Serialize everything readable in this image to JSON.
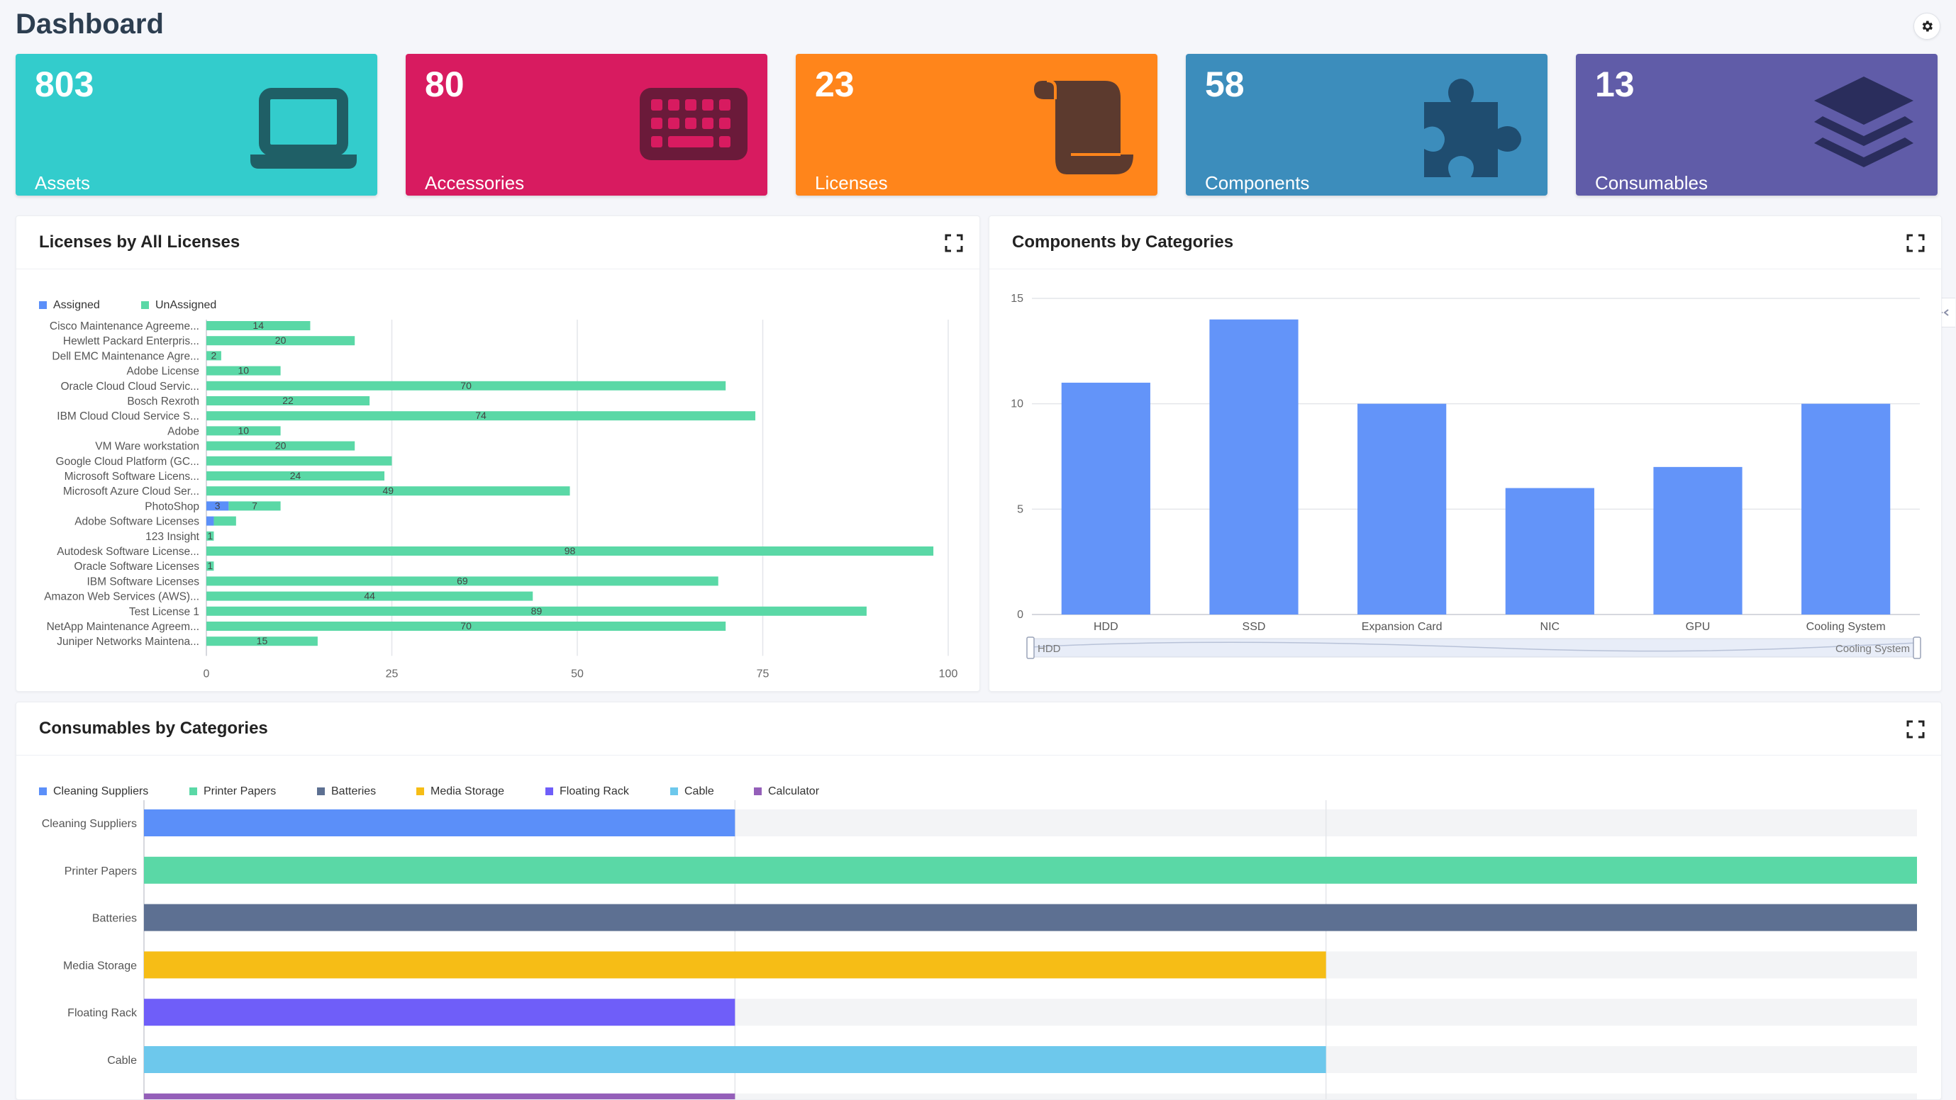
{
  "page": {
    "title": "Dashboard",
    "settings_icon": "gear-icon",
    "edge_tab_icon": "collapse-arrows-icon"
  },
  "stats": [
    {
      "value": "803",
      "label": "Assets",
      "color": "#33cccc",
      "icon": "laptop-icon"
    },
    {
      "value": "80",
      "label": "Accessories",
      "color": "#d81b60",
      "icon": "keyboard-icon"
    },
    {
      "value": "23",
      "label": "Licenses",
      "color": "#ff851b",
      "icon": "scroll-icon"
    },
    {
      "value": "58",
      "label": "Components",
      "color": "#3c8dbc",
      "icon": "puzzle-icon"
    },
    {
      "value": "13",
      "label": "Consumables",
      "color": "#605ca8",
      "icon": "layers-icon"
    }
  ],
  "panels": {
    "licenses": {
      "title": "Licenses by All Licenses",
      "expand_icon": "expand-icon"
    },
    "components": {
      "title": "Components by Categories",
      "expand_icon": "expand-icon"
    },
    "consumables": {
      "title": "Consumables by Categories",
      "expand_icon": "expand-icon"
    }
  },
  "chart_data": [
    {
      "id": "licenses",
      "type": "bar",
      "orientation": "horizontal",
      "stacked": true,
      "legend_position": "top-left",
      "categories": [
        "Cisco Maintenance Agreeme...",
        "Hewlett Packard Enterpris...",
        "Dell EMC Maintenance Agre...",
        "Adobe License",
        "Oracle Cloud Cloud Servic...",
        "Bosch Rexroth",
        "IBM Cloud Cloud Service S...",
        "Adobe",
        "VM Ware workstation",
        "Google Cloud Platform (GC...",
        "Microsoft Software Licens...",
        "Microsoft Azure Cloud Ser...",
        "PhotoShop",
        "Adobe Software Licenses",
        "123 Insight",
        "Autodesk Software License...",
        "Oracle Software Licenses",
        "IBM Software Licenses",
        "Amazon Web Services (AWS)...",
        "Test License 1",
        "NetApp Maintenance Agreem...",
        "Juniper Networks Maintena..."
      ],
      "series": [
        {
          "name": "Assigned",
          "color": "#5b8ff9",
          "values": [
            0,
            0,
            0,
            0,
            0,
            0,
            0,
            0,
            0,
            0,
            0,
            0,
            3,
            1,
            0,
            0,
            0,
            0,
            0,
            0,
            0,
            0
          ],
          "labels": [
            "",
            "",
            "",
            "",
            "",
            "",
            "",
            "",
            "",
            "",
            "",
            "",
            "3",
            "",
            "",
            "",
            "",
            "",
            "",
            "",
            "",
            ""
          ]
        },
        {
          "name": "UnAssigned",
          "color": "#5ad8a6",
          "values": [
            14,
            20,
            2,
            10,
            70,
            22,
            74,
            10,
            20,
            25,
            24,
            49,
            7,
            3,
            1,
            98,
            1,
            69,
            44,
            89,
            70,
            15
          ],
          "labels": [
            "14",
            "20",
            "2",
            "10",
            "70",
            "22",
            "74",
            "10",
            "20",
            "",
            "24",
            "49",
            "7",
            "",
            "1",
            "98",
            "1",
            "69",
            "44",
            "89",
            "70",
            "15"
          ]
        }
      ],
      "xlim": [
        0,
        100
      ],
      "x_ticks": [
        "0",
        "25",
        "50",
        "75",
        "100"
      ],
      "grid": true
    },
    {
      "id": "components",
      "type": "bar",
      "categories": [
        "HDD",
        "SSD",
        "Expansion Card",
        "NIC",
        "GPU",
        "Cooling System"
      ],
      "values": [
        11,
        14,
        10,
        6,
        7,
        10
      ],
      "color": "#6394f9",
      "ylim": [
        0,
        15
      ],
      "y_ticks": [
        "0",
        "5",
        "10",
        "15"
      ],
      "grid": true,
      "slider": {
        "start_label": "HDD",
        "end_label": "Cooling System"
      }
    },
    {
      "id": "consumables",
      "type": "bar",
      "orientation": "horizontal",
      "legend_position": "top-left",
      "categories": [
        "Cleaning Suppliers",
        "Printer Papers",
        "Batteries",
        "Media Storage",
        "Floating Rack",
        "Cable",
        "Calculator"
      ],
      "values": [
        1,
        3,
        3,
        2,
        1,
        2,
        1
      ],
      "colors": [
        "#5b8ff9",
        "#5ad8a6",
        "#5d7092",
        "#f6bd16",
        "#6f5ef9",
        "#6dc8ec",
        "#945fb9"
      ],
      "xlim": [
        0,
        3
      ],
      "grid": true
    }
  ]
}
